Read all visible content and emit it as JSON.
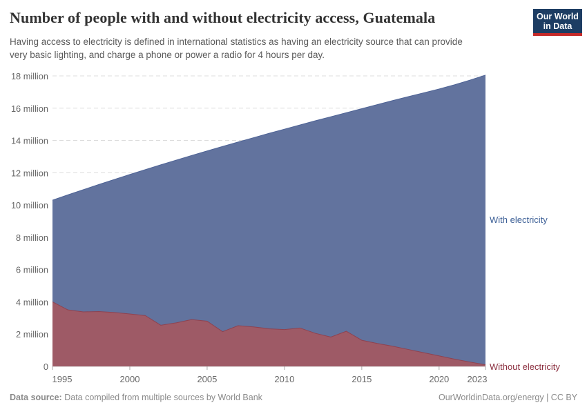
{
  "header": {
    "title": "Number of people with and without electricity access, Guatemala",
    "subtitle_line1": "Having access to electricity is defined in international statistics as having an electricity source that can provide",
    "subtitle_line2": "very basic lighting, and charge a phone or power a radio for 4 hours per day.",
    "logo": {
      "line1": "Our World",
      "line2": "in Data",
      "bg_color": "#1d3d63",
      "accent_color": "#c62a29"
    }
  },
  "chart_data": {
    "type": "area",
    "stacked": true,
    "title": "Number of people with and without electricity access, Guatemala",
    "xlabel": "",
    "ylabel": "",
    "grid": "dashed-horizontal",
    "legend_position": "right-edge-labels",
    "x": [
      1995,
      1996,
      1997,
      1998,
      1999,
      2000,
      2001,
      2002,
      2003,
      2004,
      2005,
      2006,
      2007,
      2008,
      2009,
      2010,
      2011,
      2012,
      2013,
      2014,
      2015,
      2016,
      2017,
      2018,
      2019,
      2020,
      2021,
      2022,
      2023
    ],
    "series": [
      {
        "name": "Without electricity",
        "fill": "#9e5a66",
        "stroke": "#8e4250",
        "label_color": "#8c3040",
        "values": [
          4000000,
          3500000,
          3380000,
          3400000,
          3340000,
          3250000,
          3150000,
          2550000,
          2700000,
          2900000,
          2800000,
          2150000,
          2520000,
          2450000,
          2330000,
          2280000,
          2380000,
          2050000,
          1820000,
          2180000,
          1620000,
          1420000,
          1250000,
          1050000,
          850000,
          650000,
          450000,
          270000,
          100000
        ]
      },
      {
        "name": "With electricity",
        "fill": "#62739e",
        "stroke": "#4e6396",
        "label_color": "#3c5f96",
        "values": [
          6300000,
          7130000,
          7570000,
          7870000,
          8240000,
          8640000,
          9040000,
          9940000,
          10080000,
          10170000,
          10550000,
          11480000,
          11380000,
          11720000,
          12110000,
          12420000,
          12580000,
          13170000,
          13650000,
          13540000,
          14350000,
          14800000,
          15220000,
          15660000,
          16100000,
          16540000,
          17000000,
          17470000,
          17950000
        ]
      }
    ],
    "ylim": [
      0,
      18000000
    ],
    "xlim": [
      1995,
      2023
    ],
    "y_ticks": [
      {
        "value": 0,
        "label": "0"
      },
      {
        "value": 2000000,
        "label": "2 million"
      },
      {
        "value": 4000000,
        "label": "4 million"
      },
      {
        "value": 6000000,
        "label": "6 million"
      },
      {
        "value": 8000000,
        "label": "8 million"
      },
      {
        "value": 10000000,
        "label": "10 million"
      },
      {
        "value": 12000000,
        "label": "12 million"
      },
      {
        "value": 14000000,
        "label": "14 million"
      },
      {
        "value": 16000000,
        "label": "16 million"
      },
      {
        "value": 18000000,
        "label": "18 million"
      }
    ],
    "x_ticks": [
      {
        "value": 1995,
        "label": "1995"
      },
      {
        "value": 2000,
        "label": "2000"
      },
      {
        "value": 2005,
        "label": "2005"
      },
      {
        "value": 2010,
        "label": "2010"
      },
      {
        "value": 2015,
        "label": "2015"
      },
      {
        "value": 2020,
        "label": "2020"
      },
      {
        "value": 2023,
        "label": "2023"
      }
    ]
  },
  "footer": {
    "source_label": "Data source:",
    "source_text": "Data compiled from multiple sources by World Bank",
    "credit": "OurWorldinData.org/energy | CC BY"
  }
}
